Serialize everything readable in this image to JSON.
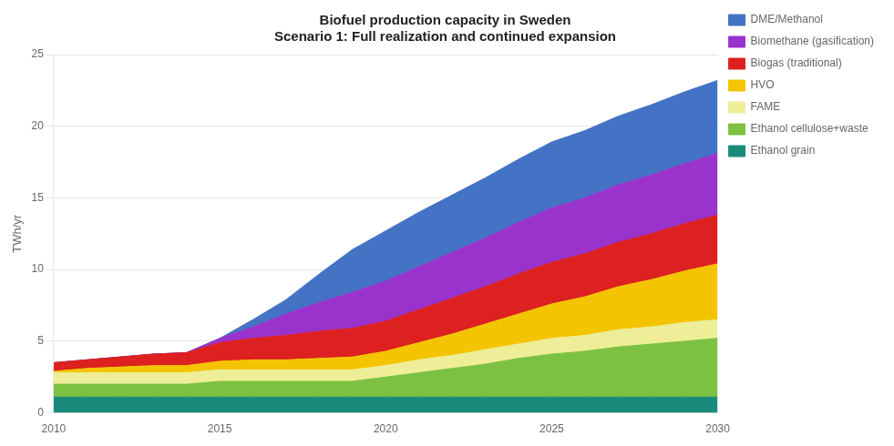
{
  "chart_data": {
    "type": "area",
    "title": "Biofuel production capacity in Sweden",
    "subtitle": "Scenario 1: Full realization and continued expansion",
    "y_label": "TWh/yr",
    "x": [
      2010,
      2011,
      2012,
      2013,
      2014,
      2015,
      2016,
      2017,
      2018,
      2019,
      2020,
      2021,
      2022,
      2023,
      2024,
      2025,
      2026,
      2027,
      2028,
      2029,
      2030
    ],
    "series": [
      {
        "name": "Ethanol grain",
        "color": "#1a8a7a",
        "values": [
          1.1,
          1.1,
          1.1,
          1.1,
          1.1,
          1.1,
          1.1,
          1.1,
          1.1,
          1.1,
          1.1,
          1.1,
          1.1,
          1.1,
          1.1,
          1.1,
          1.1,
          1.1,
          1.1,
          1.1,
          1.1
        ]
      },
      {
        "name": "Ethanol cellulose+waste",
        "color": "#7dc142",
        "values": [
          0.9,
          0.9,
          0.9,
          0.9,
          0.9,
          1.1,
          1.1,
          1.1,
          1.1,
          1.1,
          1.4,
          1.7,
          2.0,
          2.3,
          2.7,
          3.0,
          3.2,
          3.5,
          3.7,
          3.9,
          4.1
        ]
      },
      {
        "name": "FAME",
        "color": "#eeee99",
        "values": [
          0.8,
          0.8,
          0.8,
          0.8,
          0.8,
          0.8,
          0.8,
          0.8,
          0.8,
          0.8,
          0.8,
          0.9,
          0.9,
          1.0,
          1.0,
          1.1,
          1.1,
          1.2,
          1.2,
          1.3,
          1.3
        ]
      },
      {
        "name": "HVO",
        "color": "#f5c400",
        "values": [
          0.1,
          0.3,
          0.4,
          0.5,
          0.5,
          0.6,
          0.7,
          0.7,
          0.8,
          0.9,
          1.0,
          1.2,
          1.5,
          1.8,
          2.1,
          2.4,
          2.7,
          3.0,
          3.3,
          3.6,
          3.9
        ]
      },
      {
        "name": "Biogas (traditional)",
        "color": "#dd2020",
        "values": [
          0.6,
          0.6,
          0.7,
          0.8,
          0.9,
          1.3,
          1.5,
          1.7,
          1.9,
          2.0,
          2.1,
          2.3,
          2.5,
          2.6,
          2.8,
          2.9,
          3.0,
          3.1,
          3.2,
          3.3,
          3.4
        ]
      },
      {
        "name": "Biomethane (gasification)",
        "color": "#9933cc",
        "values": [
          0.0,
          0.0,
          0.0,
          0.0,
          0.0,
          0.3,
          0.8,
          1.5,
          2.0,
          2.5,
          2.8,
          3.0,
          3.2,
          3.4,
          3.6,
          3.8,
          3.9,
          4.0,
          4.1,
          4.2,
          4.3
        ]
      },
      {
        "name": "DME/Methanol",
        "color": "#4472c4",
        "values": [
          0.0,
          0.0,
          0.0,
          0.0,
          0.0,
          0.0,
          0.5,
          1.0,
          2.0,
          3.0,
          3.5,
          3.8,
          4.0,
          4.2,
          4.4,
          4.6,
          4.7,
          4.8,
          4.9,
          5.0,
          5.1
        ]
      }
    ],
    "xlim": [
      2010,
      2030
    ],
    "xticks": [
      2010,
      2015,
      2020,
      2025,
      2030
    ],
    "ylim": [
      0,
      25
    ],
    "yticks": [
      0,
      5,
      10,
      15,
      20,
      25
    ],
    "stacked": true,
    "grid": "y",
    "legend": "right"
  }
}
